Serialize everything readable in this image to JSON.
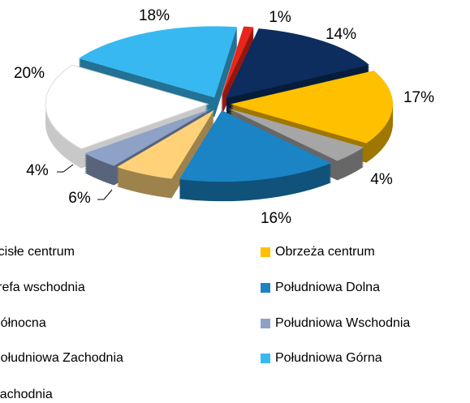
{
  "chart_data": {
    "type": "pie",
    "categories": [
      "Ścisłe centrum",
      "Zachodnia",
      "Obrzeża centrum",
      "Strefa wschodnia",
      "Południowa  Dolna",
      "Północna",
      "Południowa  Wschodnia",
      "Południowa  Zachodnia",
      "Południowa  Górna"
    ],
    "values": [
      1,
      14,
      17,
      4,
      16,
      6,
      4,
      20,
      18
    ],
    "value_labels": [
      "1%",
      "14%",
      "17%",
      "4%",
      "16%",
      "6%",
      "4%",
      "20%",
      "18%"
    ],
    "colors": [
      "#e8261c",
      "#0c2d5e",
      "#ffc000",
      "#a6a6a6",
      "#1a84c4",
      "#ffd27a",
      "#8ea2c8",
      "#ffffff",
      "#38b8f0"
    ],
    "legend": "bottom"
  }
}
